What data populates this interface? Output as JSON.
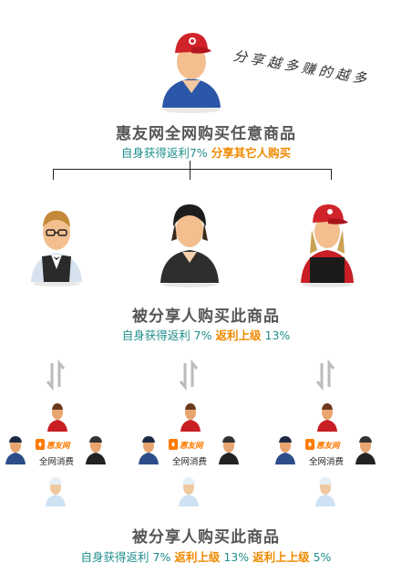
{
  "slogan": "分享越多赚的越多",
  "top": {
    "title": "惠友网全网购买任意商品",
    "sub_a": "自身获得返利7%",
    "sub_b": "分享其它人购买"
  },
  "middle": {
    "title": "被分享人购买此商品",
    "sub_a": "自身获得返利 7%",
    "sub_b": "返利上级",
    "sub_c": "13%"
  },
  "bottom": {
    "title": "被分享人购买此商品",
    "sub_a": "自身获得返利 7%",
    "sub_b": "返利上级",
    "sub_c": "13%",
    "sub_d": "返利上上级",
    "sub_e": "5%"
  },
  "clusters": [
    {
      "logo_text": "惠友网",
      "label": "全网消费"
    },
    {
      "logo_text": "惠友网",
      "label": "全网消费"
    },
    {
      "logo_text": "惠友网",
      "label": "全网消费"
    }
  ],
  "colors": {
    "teal": "#1f8f8c",
    "orange": "#f08a00",
    "title_gray": "#555555"
  }
}
